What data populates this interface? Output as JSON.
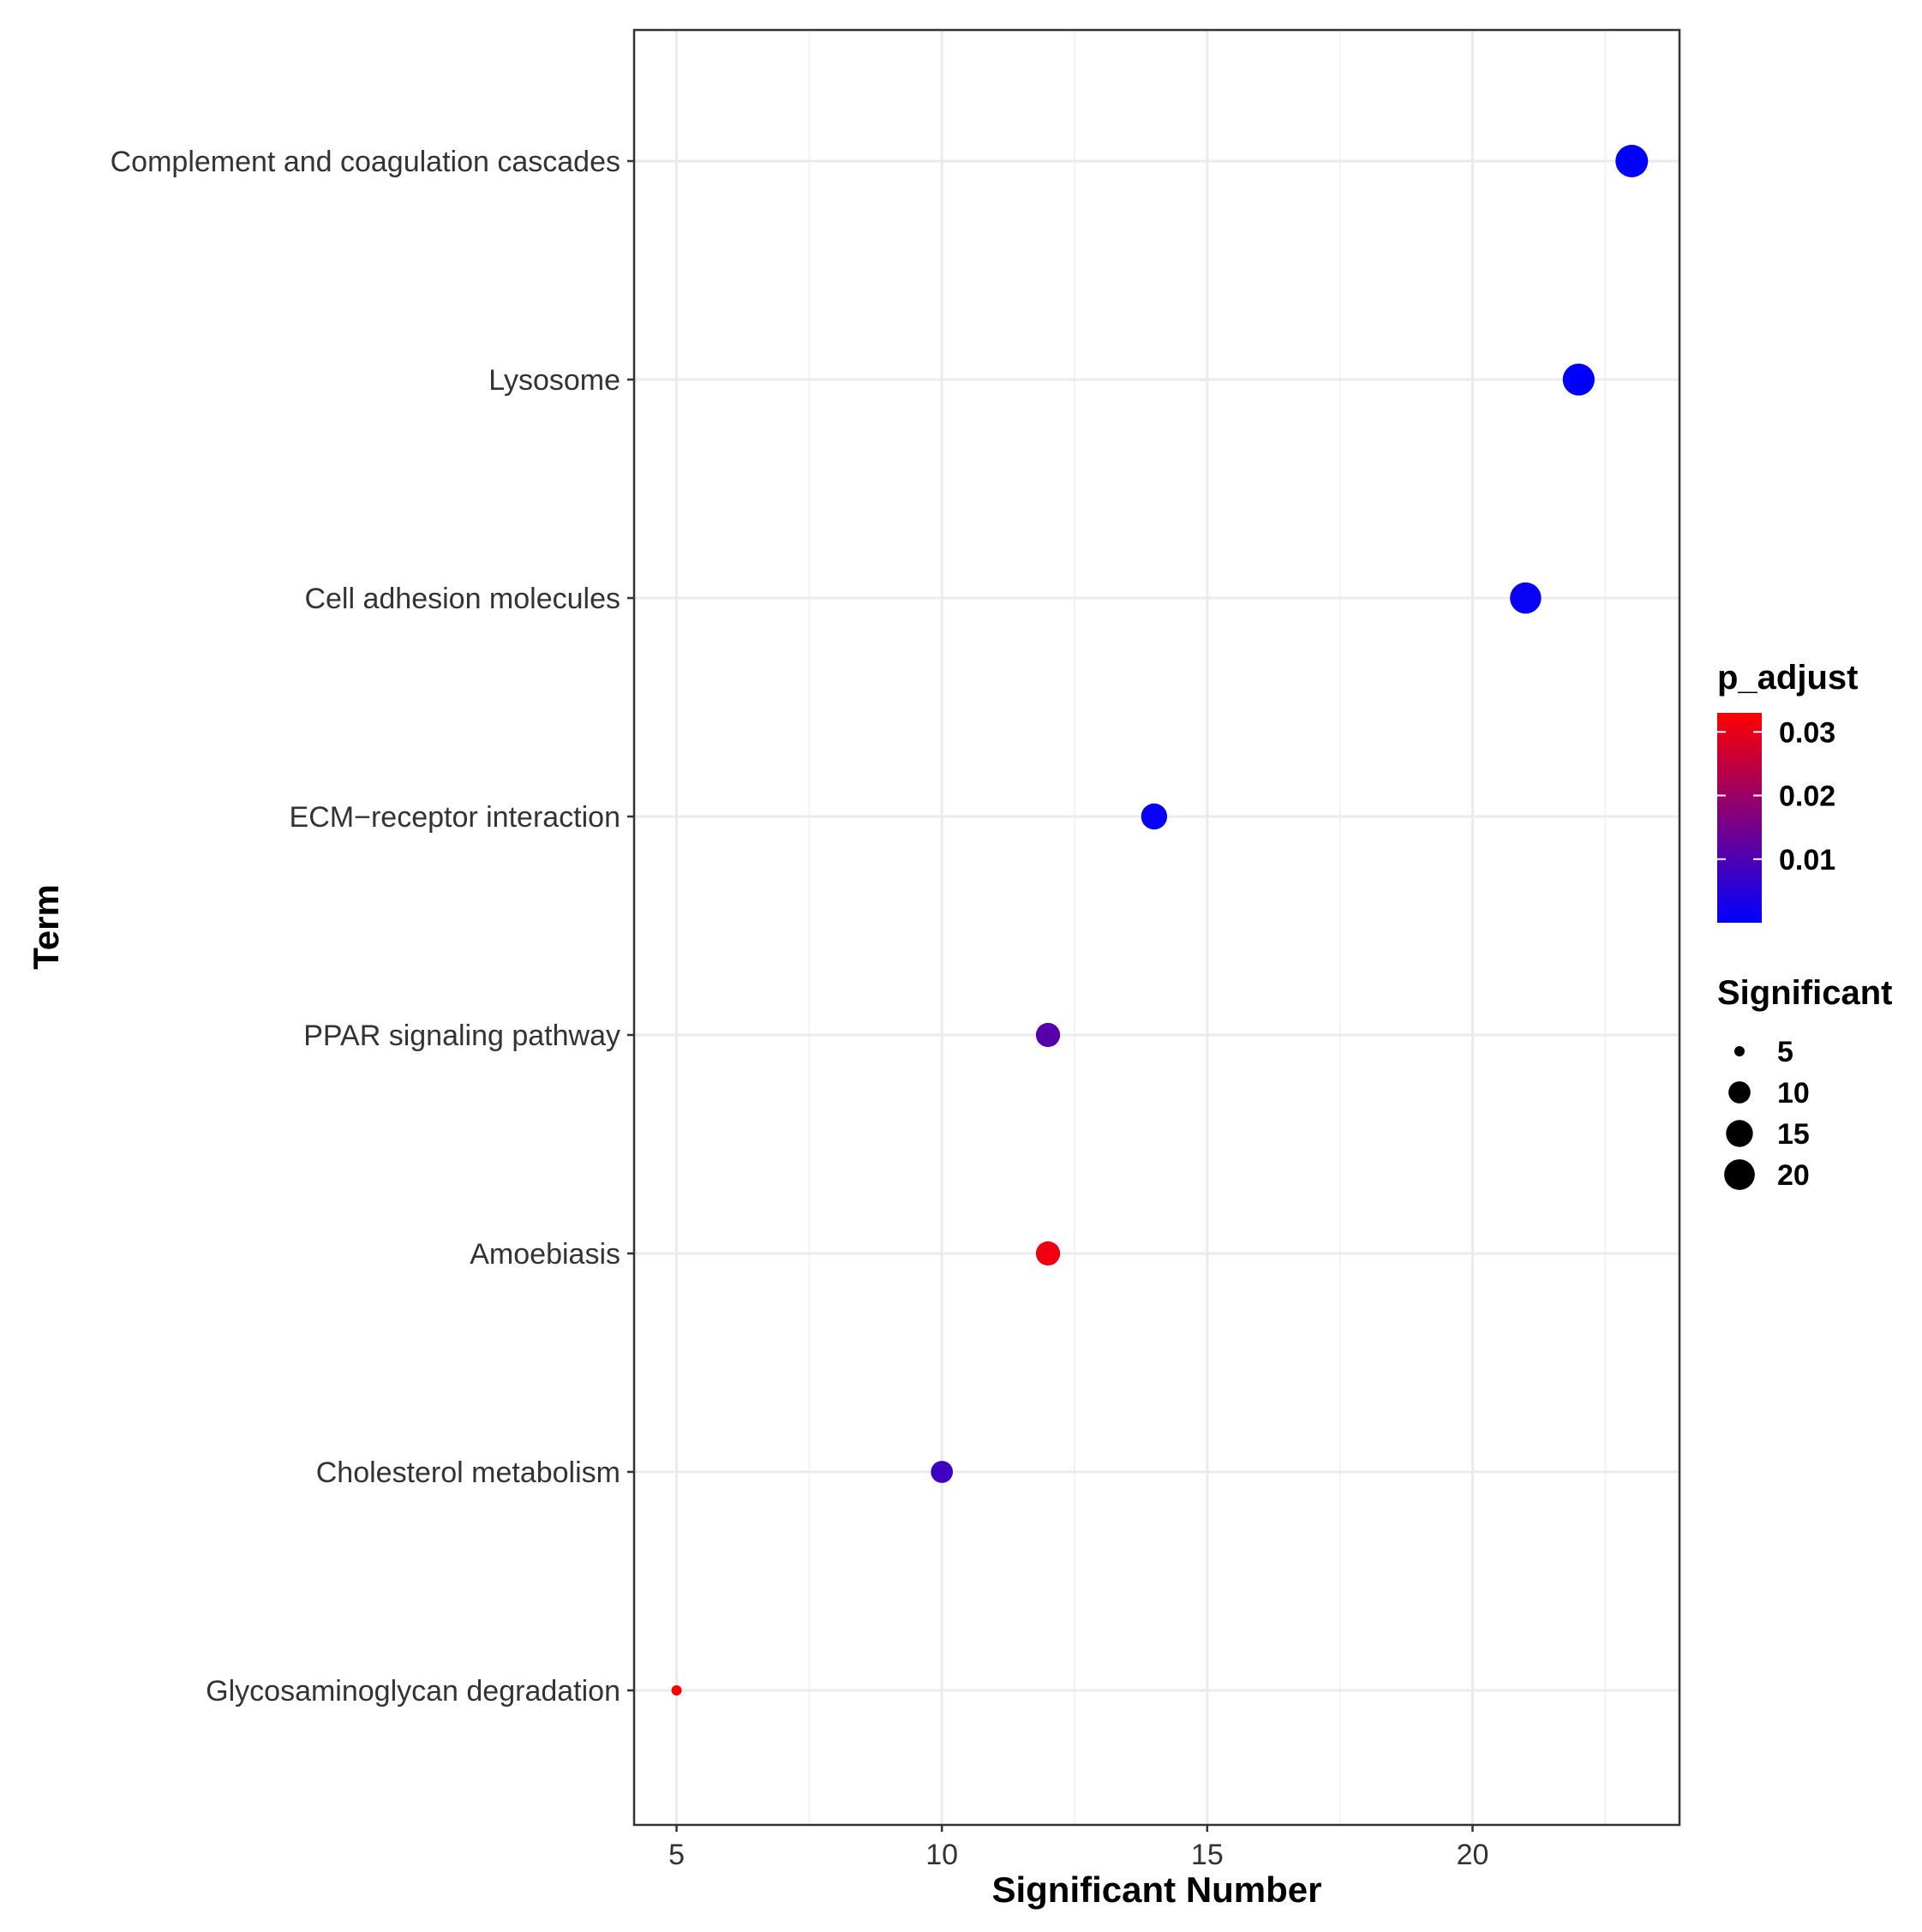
{
  "chart_data": {
    "type": "scatter",
    "title": "",
    "xlabel": "Significant Number",
    "ylabel": "Term",
    "xlim": [
      4.2,
      23.9
    ],
    "x_ticks": [
      5,
      10,
      15,
      20
    ],
    "grid": true,
    "points": [
      {
        "term": "Complement and coagulation cascades",
        "significant": 23,
        "p_adjust": 0.0001
      },
      {
        "term": "Lysosome",
        "significant": 22,
        "p_adjust": 0.0002
      },
      {
        "term": "Cell adhesion molecules",
        "significant": 21,
        "p_adjust": 0.0012
      },
      {
        "term": "ECM−receptor interaction",
        "significant": 14,
        "p_adjust": 0.001
      },
      {
        "term": "PPAR signaling pathway",
        "significant": 12,
        "p_adjust": 0.011
      },
      {
        "term": "Amoebiasis",
        "significant": 12,
        "p_adjust": 0.031
      },
      {
        "term": "Cholesterol metabolism",
        "significant": 10,
        "p_adjust": 0.008
      },
      {
        "term": "Glycosaminoglycan degradation",
        "significant": 5,
        "p_adjust": 0.033
      }
    ],
    "color_legend": {
      "title": "p_adjust",
      "min": 0.0,
      "max": 0.033,
      "breaks": [
        0.03,
        0.02,
        0.01
      ],
      "break_labels": [
        "0.03",
        "0.02",
        "0.01"
      ],
      "low_color": "#0000ff",
      "high_color": "#ff0000"
    },
    "size_legend": {
      "title": "Significant",
      "breaks": [
        5,
        10,
        15,
        20
      ],
      "break_labels": [
        "5",
        "10",
        "15",
        "20"
      ]
    },
    "legend_position": "right"
  }
}
